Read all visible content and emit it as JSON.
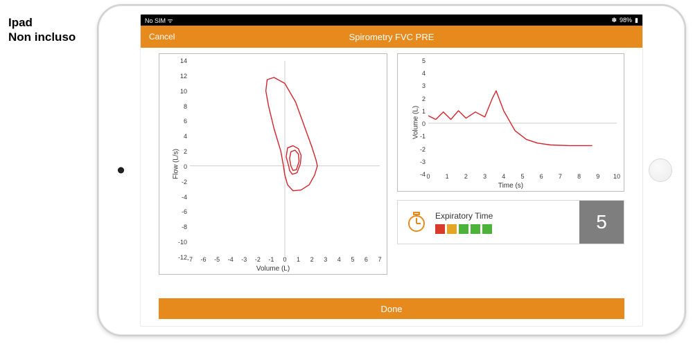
{
  "side_label": {
    "line1": "Ipad",
    "line2": "Non incluso"
  },
  "status_bar": {
    "left": "No SIM  ᯤ",
    "bluetooth": "✽",
    "battery": "98%",
    "battery_icon": "▮"
  },
  "colors": {
    "accent": "#e68a1e",
    "nav": "#e68a1e",
    "done": "#e68a1e",
    "line": "#d4222a",
    "axis": "#888888",
    "zero_line": "#9a9a9a",
    "metric_value_bg": "#7e7e7e",
    "border": "#bbbbbb"
  },
  "nav": {
    "cancel": "Cancel",
    "title": "Spirometry FVC PRE"
  },
  "done": {
    "label": "Done"
  },
  "flow_chart": {
    "type": "line",
    "y_label": "Flow (L/s)",
    "x_label": "Volume (L)",
    "ylim": [
      -12,
      14
    ],
    "xlim": [
      -7,
      7
    ],
    "yticks": [
      -12,
      -10,
      -8,
      -6,
      -4,
      -2,
      0,
      2,
      4,
      6,
      8,
      10,
      12,
      14
    ],
    "xticks": [
      -7,
      -6,
      -5,
      -4,
      -3,
      -2,
      -1,
      0,
      1,
      2,
      3,
      4,
      5,
      6,
      7
    ],
    "background": "#ffffff",
    "line_color": "#d4222a",
    "line_width": 1.4,
    "series": [
      {
        "points": [
          [
            -0.1,
            0
          ],
          [
            -0.3,
            2
          ],
          [
            -0.8,
            5
          ],
          [
            -1.2,
            8
          ],
          [
            -1.4,
            10
          ],
          [
            -1.3,
            11.5
          ],
          [
            -0.8,
            11.8
          ],
          [
            0,
            11
          ],
          [
            0.8,
            8.5
          ],
          [
            1.5,
            5
          ],
          [
            2.0,
            2.5
          ],
          [
            2.3,
            0.8
          ],
          [
            2.4,
            0
          ]
        ]
      },
      {
        "points": [
          [
            2.4,
            0
          ],
          [
            2.2,
            -1.2
          ],
          [
            1.8,
            -2.5
          ],
          [
            1.2,
            -3.2
          ],
          [
            0.6,
            -3.3
          ],
          [
            0.2,
            -2.5
          ],
          [
            0.0,
            -1.2
          ],
          [
            -0.1,
            0
          ]
        ]
      },
      {
        "points": [
          [
            0.3,
            -0.1
          ],
          [
            0.1,
            1.2
          ],
          [
            0.2,
            2.4
          ],
          [
            0.6,
            2.7
          ],
          [
            1.0,
            2.3
          ],
          [
            1.2,
            1.4
          ],
          [
            1.15,
            0.3
          ],
          [
            0.9,
            -0.9
          ],
          [
            0.55,
            -1.1
          ],
          [
            0.35,
            -0.6
          ],
          [
            0.3,
            -0.1
          ]
        ]
      },
      {
        "points": [
          [
            0.45,
            0
          ],
          [
            0.35,
            1.0
          ],
          [
            0.45,
            1.9
          ],
          [
            0.75,
            2.1
          ],
          [
            1.0,
            1.6
          ],
          [
            1.05,
            0.6
          ],
          [
            0.85,
            -0.5
          ],
          [
            0.6,
            -0.6
          ],
          [
            0.45,
            0
          ]
        ]
      }
    ]
  },
  "volume_chart": {
    "type": "line",
    "y_label": "Volume (L)",
    "x_label": "Time (s)",
    "ylim": [
      -4,
      5
    ],
    "xlim": [
      0,
      10
    ],
    "yticks": [
      -4,
      -3,
      -2,
      -1,
      0,
      1,
      2,
      3,
      4,
      5
    ],
    "xticks": [
      0,
      1,
      2,
      3,
      4,
      5,
      6,
      7,
      8,
      9,
      10
    ],
    "background": "#ffffff",
    "line_color": "#d4222a",
    "line_width": 1.4,
    "series": [
      {
        "points": [
          [
            0,
            0.6
          ],
          [
            0.4,
            0.3
          ],
          [
            0.8,
            0.9
          ],
          [
            1.2,
            0.3
          ],
          [
            1.6,
            1.0
          ],
          [
            2.0,
            0.4
          ],
          [
            2.5,
            0.9
          ],
          [
            3.0,
            0.5
          ],
          [
            3.4,
            2.0
          ],
          [
            3.6,
            2.6
          ],
          [
            4.0,
            1.0
          ],
          [
            4.6,
            -0.6
          ],
          [
            5.2,
            -1.3
          ],
          [
            5.8,
            -1.6
          ],
          [
            6.5,
            -1.75
          ],
          [
            7.5,
            -1.8
          ],
          [
            8.7,
            -1.8
          ]
        ]
      }
    ]
  },
  "metric": {
    "title": "Expiratory Time",
    "value": "5",
    "value_bg": "#7e7e7e",
    "icon_color": "#e68a1e",
    "squares": [
      "#d83a2b",
      "#e6a423",
      "#4db23a",
      "#4db23a",
      "#4db23a"
    ]
  }
}
